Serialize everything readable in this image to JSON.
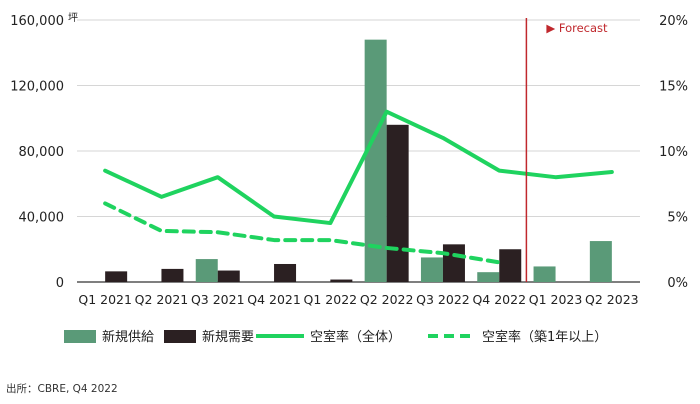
{
  "chart_data": {
    "type": "bar",
    "categories": [
      "Q1 2021",
      "Q2 2021",
      "Q3 2021",
      "Q4 2021",
      "Q1 2022",
      "Q2 2022",
      "Q3 2022",
      "Q4 2022",
      "Q1 2023",
      "Q2 2023"
    ],
    "left_axis": {
      "unit": "坪",
      "ylim": [
        0,
        160000
      ],
      "ticks": [
        0,
        40000,
        80000,
        120000,
        160000
      ],
      "tick_labels": [
        "0",
        "40,000",
        "80,000",
        "120,000",
        "160,000"
      ]
    },
    "right_axis": {
      "ylim": [
        0,
        20
      ],
      "ticks": [
        0,
        5,
        10,
        15,
        20
      ],
      "tick_labels": [
        "0%",
        "5%",
        "10%",
        "15%",
        "20%"
      ]
    },
    "bar_series": [
      {
        "name": "新規供給",
        "color": "#5a9a78",
        "values": [
          0,
          0,
          14000,
          0,
          0,
          148000,
          15000,
          6000,
          9500,
          25000
        ]
      },
      {
        "name": "新規需要",
        "color": "#2b2022",
        "values": [
          6500,
          8000,
          7000,
          11000,
          1500,
          96000,
          23000,
          20000,
          null,
          null
        ]
      }
    ],
    "line_series": [
      {
        "name": "空室率（全体）",
        "color": "#1fd35f",
        "style": "solid",
        "values": [
          8.5,
          6.5,
          8.0,
          5.0,
          4.5,
          13.0,
          11.0,
          8.5,
          8.0,
          8.4
        ]
      },
      {
        "name": "空室率（築1年以上）",
        "color": "#1fd35f",
        "style": "dashed",
        "values": [
          6.0,
          3.9,
          3.8,
          3.2,
          3.2,
          2.6,
          2.2,
          1.5,
          null,
          null
        ]
      }
    ],
    "annotation": {
      "label": "▶ Forecast",
      "after_category": "Q4 2022",
      "color": "#c0282d"
    },
    "grid": "horizontal",
    "legend_placement": "bottom"
  },
  "source_note": "出所：CBRE, Q4 2022"
}
